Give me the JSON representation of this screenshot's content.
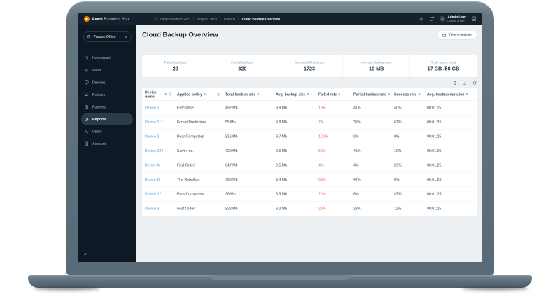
{
  "topbar": {
    "brand": {
      "bold": "Avast",
      "rest": " Business Hub"
    },
    "breadcrumb": {
      "items": [
        "Large Business Acc.",
        "Prague Office",
        "Reports"
      ],
      "current": "Cloud Backup Overview",
      "separator": "/"
    },
    "user": {
      "name": "Admin User",
      "role": "Global Admin"
    }
  },
  "sidebar": {
    "location_selector": "Prague Office",
    "items": [
      {
        "label": "Dashboard"
      },
      {
        "label": "Alerts"
      },
      {
        "label": "Devices"
      },
      {
        "label": "Policies"
      },
      {
        "label": "Patches"
      },
      {
        "label": "Reports",
        "active": true
      },
      {
        "label": "Users"
      },
      {
        "label": "Account"
      }
    ],
    "collapse_glyph": "«"
  },
  "page": {
    "title": "Cloud Backup Overview",
    "view_schedules_label": "View schedules"
  },
  "stats": [
    {
      "label": "Failed backups",
      "value": "20"
    },
    {
      "label": "Partial backups",
      "value": "320"
    },
    {
      "label": "Successful backups",
      "value": "1723"
    },
    {
      "label": "Average backup size",
      "value": "10 MB"
    },
    {
      "label": "Total space used",
      "value": "17 GB /50 GB"
    }
  ],
  "table": {
    "columns": [
      {
        "label": "Device name"
      },
      {
        "label": "Applied policy"
      },
      {
        "label": "Total backup size"
      },
      {
        "label": "Avg. backup size"
      },
      {
        "label": "Failed rate"
      },
      {
        "label": "Partial backup rate"
      },
      {
        "label": "Success rate"
      },
      {
        "label": "Avg. backup duration"
      }
    ],
    "rows": [
      {
        "device": "Device 1",
        "policy": "Enterprise",
        "total": "492 Mb",
        "avg_size": "9.9 Mb",
        "failed": "19%",
        "partial": "41%",
        "success": "40%",
        "duration": "00:01:25"
      },
      {
        "device": "Device 111",
        "policy": "Forest Predictions",
        "total": "55 Mb",
        "avg_size": "9.8 Mb",
        "failed": "7%",
        "partial": "32%",
        "success": "61%",
        "duration": "00:01:25"
      },
      {
        "device": "Device 2",
        "policy": "Pear Computers",
        "total": "816 Mb",
        "avg_size": "9.7 Mb",
        "failed": "100%",
        "partial": "0%",
        "success": "0%",
        "duration": "00:01:25"
      },
      {
        "device": "Device 222",
        "policy": "Sarfin Inc.",
        "total": "429 Mb",
        "avg_size": "9.6 Mb",
        "failed": "60%",
        "partial": "45%",
        "success": "10%",
        "duration": "00:01:25"
      },
      {
        "device": "Device A",
        "policy": "First Order",
        "total": "647 Mb",
        "avg_size": "9.5 Mb",
        "failed": "4%",
        "partial": "4%",
        "success": "23%",
        "duration": "00:01:25"
      },
      {
        "device": "Device B",
        "policy": "The Rebellion",
        "total": "798 Mb",
        "avg_size": "9.4 Mb",
        "failed": "53%",
        "partial": "47%",
        "success": "0%",
        "duration": "00:01:25"
      },
      {
        "device": "Device 12",
        "policy": "Pear Computers",
        "total": "36 Mb",
        "avg_size": "9.3 Mb",
        "failed": "12%",
        "partial": "8%",
        "success": "47%",
        "duration": "00:01:25"
      },
      {
        "device": "Device 3",
        "policy": "First Order",
        "total": "522 Mb",
        "avg_size": "9.2 Mb",
        "failed": "20%",
        "partial": "23%",
        "success": "12%",
        "duration": "00:01:25"
      }
    ]
  },
  "colors": {
    "accent_orange": "#ff7800",
    "failed_rate": "#e8664a",
    "device_link": "#4d9dd8",
    "topbar_bg": "#15222e",
    "sidebar_bg": "#0d1a26",
    "content_bg": "#edf0f2",
    "active_item_bg": "#2a3b49"
  }
}
